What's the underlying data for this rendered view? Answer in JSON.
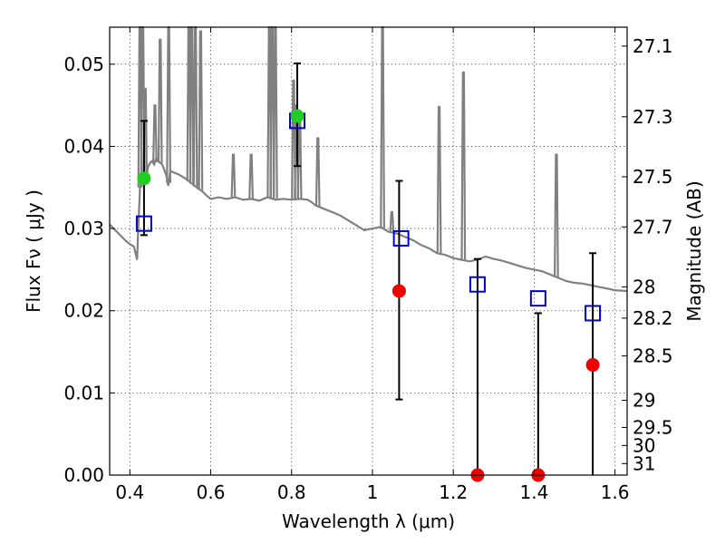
{
  "chart_data": {
    "type": "scatter",
    "xlabel": "Wavelength  λ (μm)",
    "ylabel": "Flux  Fν  ( μJy )",
    "y2label": "Magnitude (AB)",
    "xlim": [
      0.35,
      1.63
    ],
    "ylim": [
      0.0,
      0.0545
    ],
    "x_ticks": [
      0.4,
      0.6,
      0.8,
      1.0,
      1.2,
      1.4,
      1.6
    ],
    "x_tick_labels": [
      "0.4",
      "0.6",
      "0.8",
      "1",
      "1.2",
      "1.4",
      "1.6"
    ],
    "y_ticks": [
      0.0,
      0.01,
      0.02,
      0.03,
      0.04,
      0.05
    ],
    "y_tick_labels": [
      "0.00",
      "0.01",
      "0.02",
      "0.03",
      "0.04",
      "0.05"
    ],
    "mag_ticks": [
      {
        "label": "27.1",
        "flux": 0.0522
      },
      {
        "label": "27.3",
        "flux": 0.0436
      },
      {
        "label": "27.5",
        "flux": 0.0363
      },
      {
        "label": "27.7",
        "flux": 0.0302
      },
      {
        "label": "28",
        "flux": 0.0229
      },
      {
        "label": "28.2",
        "flux": 0.0191
      },
      {
        "label": "28.5",
        "flux": 0.0145
      },
      {
        "label": "29",
        "flux": 0.0091
      },
      {
        "label": "29.5",
        "flux": 0.0058
      },
      {
        "label": "30",
        "flux": 0.0036
      },
      {
        "label": "31",
        "flux": 0.0014
      }
    ],
    "grid": true,
    "colors": {
      "sed_line": "#808080",
      "model_box": "#0000cc",
      "green_point": "#22cc22",
      "red_point": "#ee0000",
      "errorbar": "#000000"
    },
    "series": [
      {
        "marker": "square-open",
        "color": "#0000cc",
        "points": [
          {
            "x": 0.435,
            "y": 0.0306
          },
          {
            "x": 0.814,
            "y": 0.0431
          },
          {
            "x": 1.071,
            "y": 0.0288
          },
          {
            "x": 1.26,
            "y": 0.0232
          },
          {
            "x": 1.41,
            "y": 0.0215
          },
          {
            "x": 1.545,
            "y": 0.0197
          }
        ]
      },
      {
        "marker": "circle",
        "color": "#22cc22",
        "points": [
          {
            "x": 0.435,
            "y": 0.0361,
            "yerr_low": 0.0292,
            "yerr_high": 0.0431
          },
          {
            "x": 0.814,
            "y": 0.0437,
            "yerr_low": 0.0376,
            "yerr_high": 0.0501
          }
        ]
      },
      {
        "marker": "circle",
        "color": "#ee0000",
        "points": [
          {
            "x": 1.066,
            "y": 0.0224,
            "yerr_low": 0.0092,
            "yerr_high": 0.0358
          },
          {
            "x": 1.26,
            "y": 0.0,
            "yerr_low": 0.0,
            "yerr_high": 0.0263
          },
          {
            "x": 1.41,
            "y": 0.0,
            "yerr_low": 0.0,
            "yerr_high": 0.0197
          },
          {
            "x": 1.545,
            "y": 0.0134,
            "yerr_low": 0.0,
            "yerr_high": 0.027
          }
        ]
      }
    ],
    "sed_line": [
      [
        0.35,
        0.0305
      ],
      [
        0.36,
        0.03
      ],
      [
        0.37,
        0.0295
      ],
      [
        0.38,
        0.029
      ],
      [
        0.39,
        0.0285
      ],
      [
        0.4,
        0.0281
      ],
      [
        0.41,
        0.0278
      ],
      [
        0.415,
        0.0268
      ],
      [
        0.418,
        0.0262
      ],
      [
        0.42,
        0.029
      ],
      [
        0.425,
        0.035
      ],
      [
        0.43,
        0.036
      ],
      [
        0.44,
        0.0358
      ],
      [
        0.445,
        0.0375
      ],
      [
        0.45,
        0.038
      ],
      [
        0.455,
        0.0382
      ],
      [
        0.46,
        0.0378
      ],
      [
        0.465,
        0.0385
      ],
      [
        0.47,
        0.0382
      ],
      [
        0.48,
        0.0378
      ],
      [
        0.49,
        0.0365
      ],
      [
        0.495,
        0.0352
      ],
      [
        0.5,
        0.037
      ],
      [
        0.52,
        0.0366
      ],
      [
        0.54,
        0.036
      ],
      [
        0.56,
        0.0352
      ],
      [
        0.58,
        0.0345
      ],
      [
        0.59,
        0.034
      ],
      [
        0.6,
        0.0336
      ],
      [
        0.62,
        0.0338
      ],
      [
        0.64,
        0.0336
      ],
      [
        0.66,
        0.0338
      ],
      [
        0.68,
        0.0335
      ],
      [
        0.7,
        0.0336
      ],
      [
        0.72,
        0.0334
      ],
      [
        0.74,
        0.0338
      ],
      [
        0.76,
        0.0335
      ],
      [
        0.78,
        0.0336
      ],
      [
        0.8,
        0.0335
      ],
      [
        0.82,
        0.0336
      ],
      [
        0.84,
        0.0335
      ],
      [
        0.85,
        0.0332
      ],
      [
        0.86,
        0.0328
      ],
      [
        0.88,
        0.0324
      ],
      [
        0.9,
        0.032
      ],
      [
        0.92,
        0.0316
      ],
      [
        0.94,
        0.031
      ],
      [
        0.96,
        0.0304
      ],
      [
        0.98,
        0.0298
      ],
      [
        1.0,
        0.03
      ],
      [
        1.02,
        0.0302
      ],
      [
        1.04,
        0.0296
      ],
      [
        1.06,
        0.0294
      ],
      [
        1.08,
        0.029
      ],
      [
        1.1,
        0.0286
      ],
      [
        1.12,
        0.028
      ],
      [
        1.14,
        0.0276
      ],
      [
        1.16,
        0.027
      ],
      [
        1.18,
        0.0268
      ],
      [
        1.2,
        0.0264
      ],
      [
        1.22,
        0.0262
      ],
      [
        1.24,
        0.026
      ],
      [
        1.26,
        0.0262
      ],
      [
        1.28,
        0.0266
      ],
      [
        1.3,
        0.0263
      ],
      [
        1.32,
        0.0261
      ],
      [
        1.34,
        0.0258
      ],
      [
        1.36,
        0.0255
      ],
      [
        1.38,
        0.0252
      ],
      [
        1.4,
        0.025
      ],
      [
        1.42,
        0.0248
      ],
      [
        1.44,
        0.0244
      ],
      [
        1.46,
        0.024
      ],
      [
        1.48,
        0.0236
      ],
      [
        1.5,
        0.0234
      ],
      [
        1.52,
        0.0233
      ],
      [
        1.54,
        0.0231
      ],
      [
        1.56,
        0.0229
      ],
      [
        1.58,
        0.0227
      ],
      [
        1.6,
        0.0225
      ],
      [
        1.63,
        0.0224
      ]
    ],
    "sed_lines_emission": [
      {
        "x": 0.425,
        "peak": 0.0545
      },
      {
        "x": 0.432,
        "peak": 0.0545
      },
      {
        "x": 0.438,
        "peak": 0.047
      },
      {
        "x": 0.462,
        "peak": 0.045
      },
      {
        "x": 0.475,
        "peak": 0.053
      },
      {
        "x": 0.496,
        "peak": 0.0545
      },
      {
        "x": 0.546,
        "peak": 0.0545
      },
      {
        "x": 0.553,
        "peak": 0.0545
      },
      {
        "x": 0.562,
        "peak": 0.0545
      },
      {
        "x": 0.575,
        "peak": 0.054
      },
      {
        "x": 0.656,
        "peak": 0.039
      },
      {
        "x": 0.7,
        "peak": 0.039
      },
      {
        "x": 0.745,
        "peak": 0.0545
      },
      {
        "x": 0.752,
        "peak": 0.0545
      },
      {
        "x": 0.76,
        "peak": 0.0545
      },
      {
        "x": 0.805,
        "peak": 0.048
      },
      {
        "x": 0.812,
        "peak": 0.045
      },
      {
        "x": 0.82,
        "peak": 0.044
      },
      {
        "x": 0.865,
        "peak": 0.041
      },
      {
        "x": 1.025,
        "peak": 0.0545
      },
      {
        "x": 1.048,
        "peak": 0.032
      },
      {
        "x": 1.165,
        "peak": 0.0448
      },
      {
        "x": 1.225,
        "peak": 0.049
      },
      {
        "x": 1.455,
        "peak": 0.039
      }
    ]
  }
}
